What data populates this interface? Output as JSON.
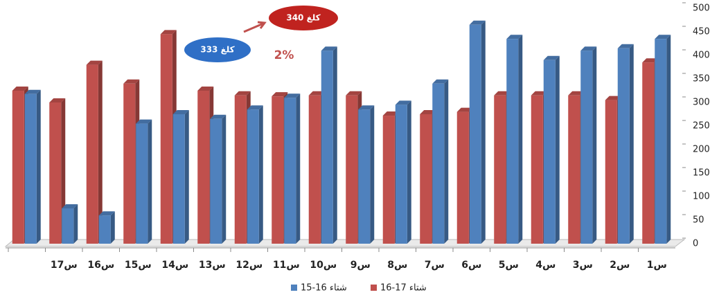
{
  "chart_data": {
    "type": "bar",
    "categories": [
      "س1",
      "س2",
      "س3",
      "س4",
      "س5",
      "س6",
      "س7",
      "س8",
      "س9",
      "س10",
      "س11",
      "س12",
      "س13",
      "س14",
      "س15",
      "س16",
      "س17",
      null
    ],
    "series": [
      {
        "name": "شتاء 17-16",
        "color": "#c0504d",
        "values": [
          385,
          305,
          315,
          315,
          315,
          280,
          275,
          272,
          315,
          315,
          313,
          315,
          325,
          445,
          340,
          380,
          300,
          325
        ]
      },
      {
        "name": "شتاء 16-15",
        "color": "#4f81bd",
        "values": [
          435,
          415,
          410,
          390,
          435,
          465,
          340,
          295,
          285,
          410,
          310,
          285,
          265,
          275,
          255,
          60,
          75,
          318
        ]
      }
    ],
    "ylim": [
      0,
      500
    ],
    "yticks": [
      0,
      50,
      100,
      150,
      200,
      250,
      300,
      350,
      400,
      450,
      500
    ],
    "annotations": [
      "340 كلغ",
      "333 كلغ",
      "2%"
    ]
  }
}
